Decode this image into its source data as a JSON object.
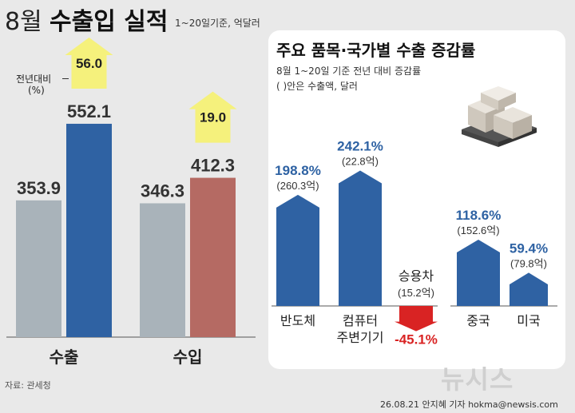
{
  "header": {
    "title_month": "8월",
    "title_main": "수출입 실적",
    "subtitle": "1~20일기준, 억달러"
  },
  "legend": {
    "line1": "전년대비",
    "line2": "(%)"
  },
  "source": "자료: 관세청",
  "credit": "26.08.21 안지혜 기자 hokma@newsis.com",
  "watermark": "뉴시스",
  "colors": {
    "prev_bar": "#a9b3ba",
    "export_bar": "#2f62a3",
    "import_bar": "#b56a63",
    "arrow_yellow": "#f5f17c",
    "arrow_blue": "#2f62a3",
    "arrow_red": "#d92323",
    "value_blue": "#2e62a3",
    "value_red": "#d92323"
  },
  "chart_data": [
    {
      "type": "bar",
      "categories": [
        "수출",
        "수입"
      ],
      "series": [
        {
          "values": [
            353.9,
            346.3
          ]
        },
        {
          "values": [
            552.1,
            412.3
          ]
        }
      ],
      "value_labels": [
        [
          "353.9",
          "346.3"
        ],
        [
          "552.1",
          "412.3"
        ]
      ],
      "change": {
        "values": [
          56.0,
          19.0
        ],
        "labels": [
          "56.0",
          "19.0"
        ]
      },
      "ylim": [
        0,
        700
      ]
    },
    {
      "type": "bar",
      "title": "주요 품목·국가별 수출 증감률",
      "subtitle": [
        "8월 1~20일 기준 전년 대비 증감률",
        "( )안은 수출액, 달러"
      ],
      "categories": [
        "반도체",
        "컴퓨터 주변기기",
        "승용차",
        "중국",
        "미국"
      ],
      "category_labels": [
        [
          "반도체"
        ],
        [
          "컴퓨터",
          "주변기기"
        ],
        [
          "승용차"
        ],
        [
          "중국"
        ],
        [
          "미국"
        ]
      ],
      "values": [
        198.8,
        242.1,
        -45.1,
        118.6,
        59.4
      ],
      "value_labels": [
        "198.8%",
        "242.1%",
        "-45.1%",
        "118.6%",
        "59.4%"
      ],
      "amounts": [
        260.3,
        22.8,
        15.2,
        152.6,
        79.8
      ],
      "amount_labels": [
        "(260.3억)",
        "(22.8억)",
        "(15.2억)",
        "(152.6억)",
        "(79.8억)"
      ]
    }
  ]
}
